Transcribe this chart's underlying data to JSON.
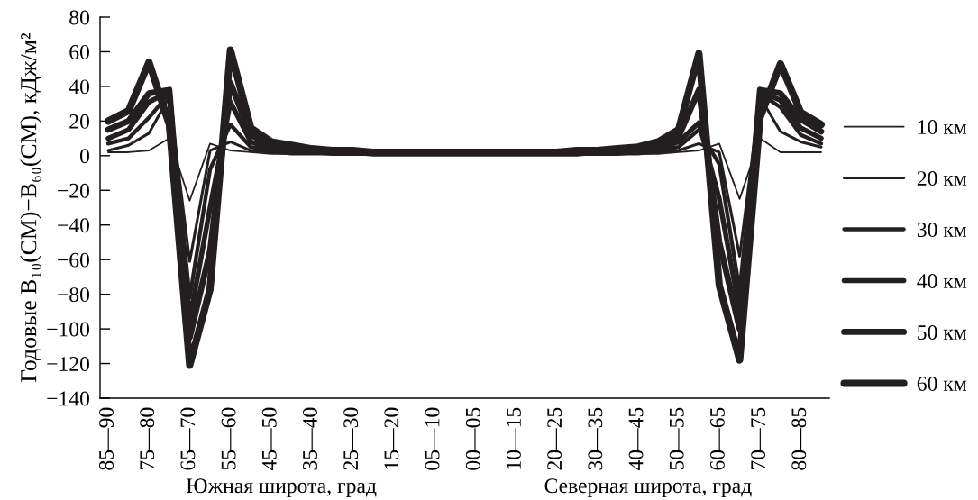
{
  "chart_data": {
    "type": "line",
    "ylabel": "Годовые B₁₀(СМ)−B₆₀(СМ), кДж/м²",
    "annotations": [
      "Южная широта, град",
      "Северная широта, град"
    ],
    "categories": [
      "85—90",
      null,
      "75—80",
      null,
      "65—70",
      null,
      "55—60",
      null,
      "45—50",
      null,
      "35—40",
      null,
      "25—30",
      null,
      "15—20",
      null,
      "05—10",
      null,
      "00—05",
      null,
      "10—15",
      null,
      "20—25",
      null,
      "30—35",
      null,
      "40—45",
      null,
      "50—55",
      null,
      "60—65",
      null,
      "70—75",
      null,
      "80—85",
      null
    ],
    "series": [
      {
        "name": "10 км",
        "color": "#231f20",
        "values": [
          2,
          2,
          3,
          10,
          -26,
          7,
          3,
          2,
          1,
          1,
          1,
          1,
          1,
          1,
          1,
          1,
          1,
          1,
          1,
          1,
          1,
          1,
          1,
          1,
          1,
          1,
          1,
          1,
          2,
          3,
          7,
          -25,
          10,
          2,
          2,
          2
        ]
      },
      {
        "name": "20 км",
        "color": "#231f20",
        "values": [
          3,
          6,
          13,
          34,
          -61,
          3,
          8,
          3,
          2,
          1,
          1,
          1,
          1,
          1,
          1,
          1,
          1,
          1,
          1,
          1,
          1,
          1,
          1,
          1,
          1,
          1,
          1,
          2,
          3,
          7,
          2,
          -58,
          34,
          14,
          8,
          5
        ]
      },
      {
        "name": "30 км",
        "color": "#231f20",
        "values": [
          7,
          10,
          22,
          36,
          -82,
          -8,
          18,
          5,
          3,
          2,
          2,
          1,
          1,
          1,
          1,
          1,
          1,
          1,
          1,
          1,
          1,
          1,
          1,
          1,
          1,
          1,
          2,
          3,
          5,
          15,
          -5,
          -78,
          36,
          28,
          12,
          7
        ]
      },
      {
        "name": "40 км",
        "color": "#231f20",
        "values": [
          10,
          15,
          31,
          37,
          -95,
          -30,
          31,
          8,
          4,
          3,
          2,
          2,
          2,
          1,
          1,
          1,
          1,
          1,
          1,
          1,
          1,
          1,
          1,
          1,
          2,
          2,
          2,
          4,
          8,
          19,
          -25,
          -90,
          37,
          32,
          16,
          10
        ]
      },
      {
        "name": "50 км",
        "color": "#231f20",
        "values": [
          15,
          20,
          36,
          38,
          -105,
          -55,
          42,
          12,
          6,
          4,
          3,
          2,
          2,
          2,
          2,
          2,
          2,
          2,
          2,
          2,
          2,
          2,
          2,
          2,
          2,
          2,
          3,
          5,
          11,
          38,
          -50,
          -100,
          38,
          36,
          21,
          14
        ]
      },
      {
        "name": "60 км",
        "color": "#231f20",
        "values": [
          20,
          26,
          54,
          18,
          -121,
          -77,
          61,
          16,
          8,
          6,
          4,
          3,
          3,
          2,
          2,
          2,
          2,
          2,
          2,
          2,
          2,
          2,
          2,
          3,
          3,
          4,
          5,
          8,
          15,
          59,
          -75,
          -118,
          22,
          53,
          25,
          18
        ]
      }
    ],
    "ylim": [
      -140,
      80
    ],
    "yticks": [
      -140,
      -120,
      -100,
      -80,
      -60,
      -40,
      -20,
      0,
      20,
      40,
      60,
      80
    ],
    "legend": "right",
    "line_style": "solid"
  }
}
